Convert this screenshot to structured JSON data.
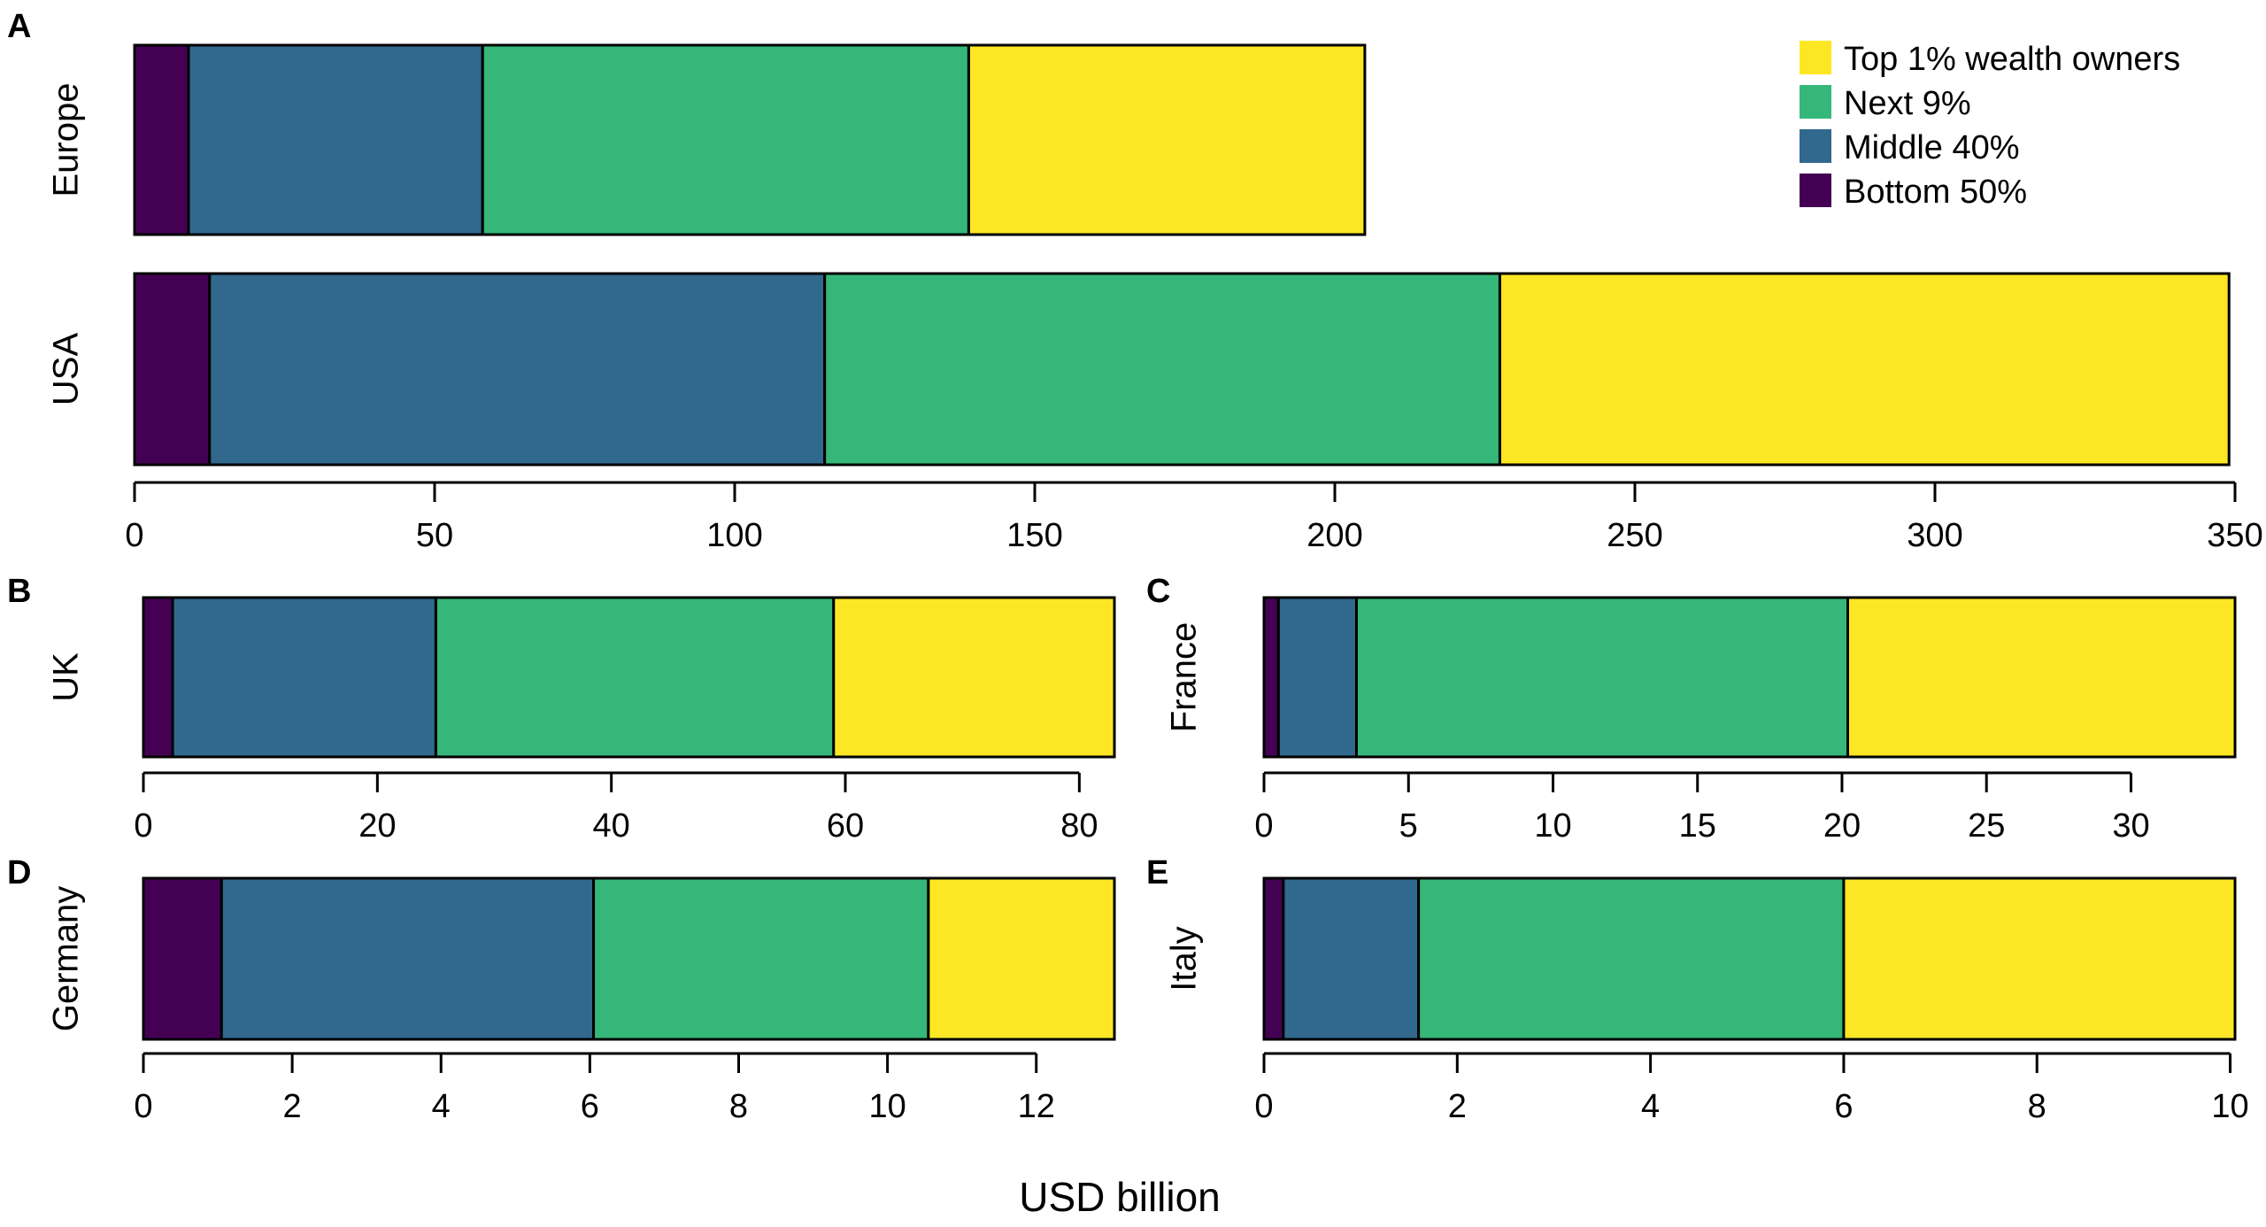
{
  "legend": {
    "entries": [
      {
        "name": "Top 1% wealth owners",
        "color": "#FDE725"
      },
      {
        "name": "Next 9%",
        "color": "#35B779"
      },
      {
        "name": "Middle 40%",
        "color": "#31688E"
      },
      {
        "name": "Bottom 50%",
        "color": "#440154"
      }
    ]
  },
  "xlabel": "USD billion",
  "chart_data": [
    {
      "panel": "A",
      "type": "bar",
      "orientation": "horizontal",
      "stacked": true,
      "categories": [
        "Europe",
        "USA"
      ],
      "series": [
        {
          "name": "Bottom 50%",
          "values": [
            9,
            12.5
          ]
        },
        {
          "name": "Middle 40%",
          "values": [
            49,
            102.5
          ]
        },
        {
          "name": "Next 9%",
          "values": [
            81,
            112.5
          ]
        },
        {
          "name": "Top 1% wealth owners",
          "values": [
            66,
            121.5
          ]
        }
      ],
      "xlim": [
        0,
        350
      ],
      "xticks": [
        0,
        50,
        100,
        150,
        200,
        250,
        300,
        350
      ]
    },
    {
      "panel": "B",
      "type": "bar",
      "orientation": "horizontal",
      "stacked": true,
      "categories": [
        "UK"
      ],
      "series": [
        {
          "name": "Bottom 50%",
          "values": [
            2.5
          ]
        },
        {
          "name": "Middle 40%",
          "values": [
            22.5
          ]
        },
        {
          "name": "Next 9%",
          "values": [
            34
          ]
        },
        {
          "name": "Top 1% wealth owners",
          "values": [
            24
          ]
        }
      ],
      "xlim": [
        0,
        83
      ],
      "xticks": [
        0,
        20,
        40,
        60,
        80
      ]
    },
    {
      "panel": "C",
      "type": "bar",
      "orientation": "horizontal",
      "stacked": true,
      "categories": [
        "France"
      ],
      "series": [
        {
          "name": "Bottom 50%",
          "values": [
            0.5
          ]
        },
        {
          "name": "Middle 40%",
          "values": [
            2.7
          ]
        },
        {
          "name": "Next 9%",
          "values": [
            17
          ]
        },
        {
          "name": "Top 1% wealth owners",
          "values": [
            13.4
          ]
        }
      ],
      "xlim": [
        0,
        33.6
      ],
      "xticks": [
        0,
        5,
        10,
        15,
        20,
        25,
        30
      ]
    },
    {
      "panel": "D",
      "type": "bar",
      "orientation": "horizontal",
      "stacked": true,
      "categories": [
        "Germany"
      ],
      "series": [
        {
          "name": "Bottom 50%",
          "values": [
            1.05
          ]
        },
        {
          "name": "Middle 40%",
          "values": [
            5.0
          ]
        },
        {
          "name": "Next 9%",
          "values": [
            4.5
          ]
        },
        {
          "name": "Top 1% wealth owners",
          "values": [
            2.5
          ]
        }
      ],
      "xlim": [
        0,
        13.05
      ],
      "xticks": [
        0,
        2,
        4,
        6,
        8,
        10,
        12
      ]
    },
    {
      "panel": "E",
      "type": "bar",
      "orientation": "horizontal",
      "stacked": true,
      "categories": [
        "Italy"
      ],
      "series": [
        {
          "name": "Bottom 50%",
          "values": [
            0.2
          ]
        },
        {
          "name": "Middle 40%",
          "values": [
            1.4
          ]
        },
        {
          "name": "Next 9%",
          "values": [
            4.4
          ]
        },
        {
          "name": "Top 1% wealth owners",
          "values": [
            4.05
          ]
        }
      ],
      "xlim": [
        0,
        10.05
      ],
      "xticks": [
        0,
        2,
        4,
        6,
        8,
        10
      ]
    }
  ]
}
